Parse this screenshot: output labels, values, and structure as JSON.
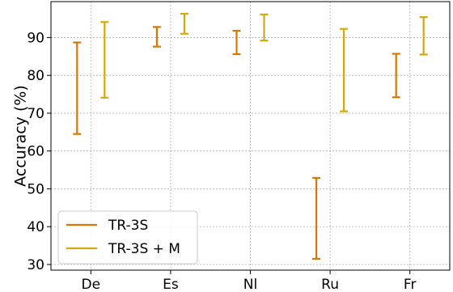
{
  "chart_data": {
    "type": "errorbar",
    "categories": [
      "De",
      "Es",
      "Nl",
      "Ru",
      "Fr"
    ],
    "ylabel": "Accuracy (%)",
    "xlabel": "",
    "ylim": [
      28.5,
      99.5
    ],
    "yticks": [
      30,
      40,
      50,
      60,
      70,
      80,
      90
    ],
    "grid": true,
    "legend_position": "bottom-left",
    "series": [
      {
        "name": "TR-3S",
        "color": "#d97706",
        "ranges": [
          [
            64.5,
            88.7
          ],
          [
            87.6,
            92.8
          ],
          [
            85.6,
            91.8
          ],
          [
            31.5,
            52.9
          ],
          [
            74.2,
            85.7
          ]
        ]
      },
      {
        "name": "TR-3S + M",
        "color": "#d4a90f",
        "ranges": [
          [
            74.1,
            94.1
          ],
          [
            91.0,
            96.3
          ],
          [
            89.2,
            96.1
          ],
          [
            70.5,
            92.3
          ],
          [
            85.5,
            95.4
          ]
        ]
      }
    ]
  }
}
